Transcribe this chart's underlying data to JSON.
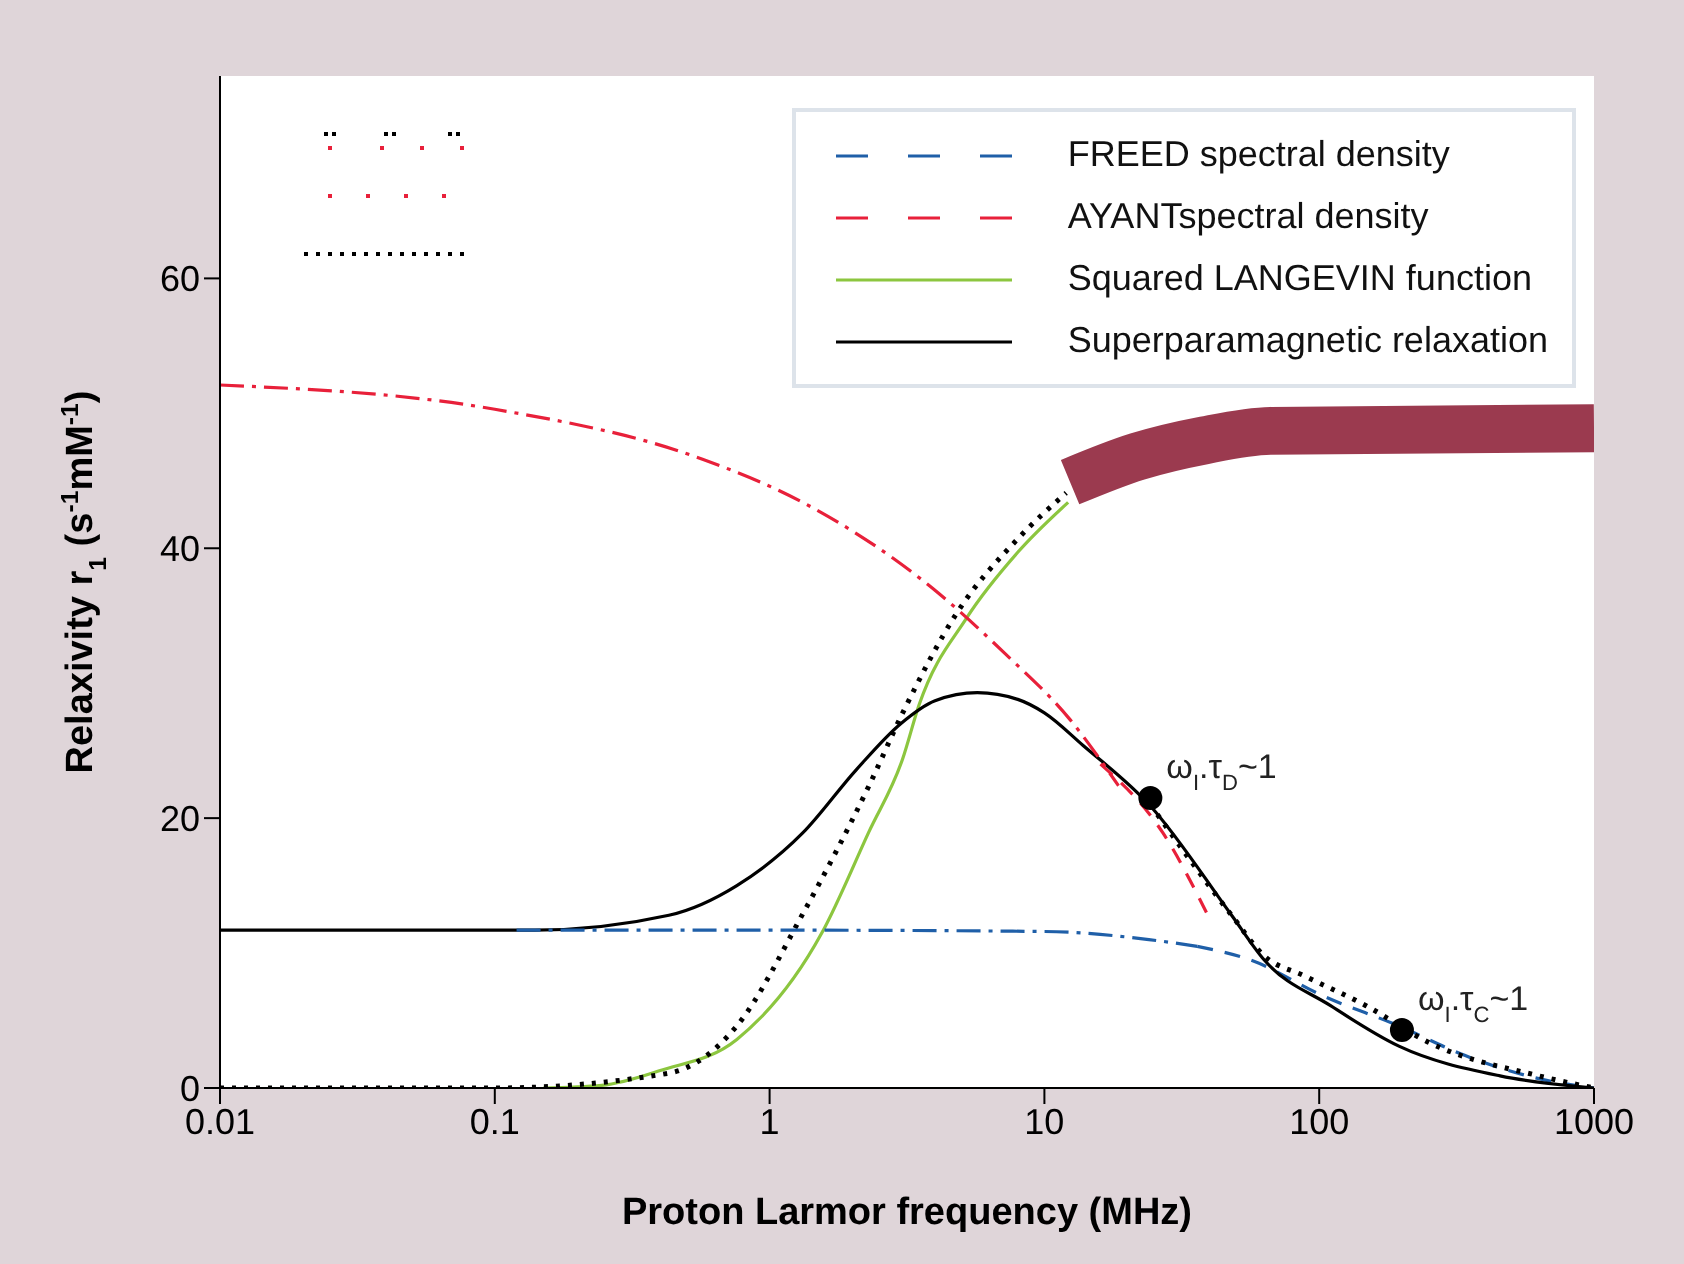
{
  "chart_data": {
    "type": "line",
    "xlabel": "Proton Larmor frequency (MHz)",
    "ylabel": "Relaxivity r$_{1}$ (s$^{-1}$mM$^{-1}$)",
    "log": "x",
    "xlim": [
      0.01,
      1000
    ],
    "xticks": [
      0.01,
      0.1,
      1,
      10,
      100,
      1000
    ],
    "ylim": [
      0,
      75
    ],
    "yticks": [
      0,
      20,
      40,
      60
    ],
    "legend": "top right",
    "series": [
      {
        "name": "FREED spectral density",
        "color": "#1f5fa8",
        "line_style": "dashed",
        "x": [
          36,
          56,
          104,
          195,
          340,
          660,
          1000
        ],
        "values": [
          10.5,
          9.5,
          6.8,
          4.6,
          2.4,
          0.6,
          0
        ]
      },
      {
        "name": "AYANTspectral density",
        "color": "#e8203a",
        "line_style": "dashed",
        "x": [
          16,
          27,
          40
        ],
        "values": [
          24,
          18.9,
          12.5
        ]
      },
      {
        "name": "Squared LANGEVIN function",
        "color": "#8cc63f",
        "line_style": "solid",
        "x": [
          0.15,
          0.245,
          0.4,
          0.76,
          1.55,
          2.3,
          3.05,
          3.5,
          5.2,
          8,
          12.2
        ],
        "values": [
          0,
          0.2,
          1.3,
          3.6,
          11.5,
          19,
          24.4,
          28.4,
          34.8,
          39.7,
          43.4
        ]
      },
      {
        "name": "Superparamagnetic relaxation",
        "color": "#000000",
        "line_style": "solid",
        "x": [
          0.01,
          0.14,
          0.43,
          0.76,
          1.32,
          2.07,
          3,
          4,
          5.7,
          8,
          10,
          13.8,
          24.3,
          48,
          63,
          110,
          195,
          455,
          1000
        ],
        "values": [
          11.7,
          11.7,
          12.8,
          15,
          18.9,
          23.6,
          27,
          28.7,
          29.3,
          28.8,
          27.8,
          25.4,
          20.9,
          12.8,
          9.5,
          6.1,
          3.1,
          0.9,
          0
        ]
      },
      {
        "color": "#000000",
        "line_style": "dotted",
        "x": [
          0.01,
          0.1,
          0.43,
          0.76,
          1.32,
          2.3,
          3.05,
          4.8,
          8,
          12,
          18,
          24.3,
          48,
          63,
          88.5,
          148,
          255,
          630,
          1000
        ],
        "values": [
          0,
          0,
          1.1,
          4.6,
          12.9,
          22.4,
          27.8,
          35.2,
          40.7,
          44.1,
          null,
          21,
          12.8,
          9.8,
          8.3,
          6.1,
          3.3,
          0.9,
          0
        ]
      },
      {
        "color": "#e8203a",
        "line_style": "dashdot",
        "x": [
          0.01,
          0.1,
          0.57,
          1.32,
          4.1,
          7.1,
          12.4,
          18.6
        ],
        "values": [
          52.1,
          50.3,
          46.6,
          43.4,
          36.7,
          32.3,
          27.3,
          22.4
        ]
      },
      {
        "color": "#1f5fa8",
        "line_style": "dashdot",
        "x": [
          0.12,
          1,
          10,
          24,
          36
        ],
        "values": [
          11.7,
          11.7,
          11.6,
          11,
          10.5
        ]
      },
      {
        "color": "#9b3a4f",
        "line_style": "solid",
        "x": [
          12.4,
          21.8,
          38.2,
          66.5,
          1000
        ],
        "values": [
          44.9,
          46.8,
          48,
          48.7,
          48.9
        ]
      },
      {
        "type": "scatter",
        "color": "#000000",
        "marker": "circle",
        "x": [
          24.3,
          200
        ],
        "values": [
          21.5,
          4.3
        ]
      }
    ],
    "annotations": [
      {
        "text": "ω$_{I}$.τ$_{D}$~1",
        "x": 24.3,
        "y": 21.5
      },
      {
        "text": "ω$_{I}$.τ$_{C}$~1",
        "x": 200,
        "y": 4.3
      }
    ]
  }
}
